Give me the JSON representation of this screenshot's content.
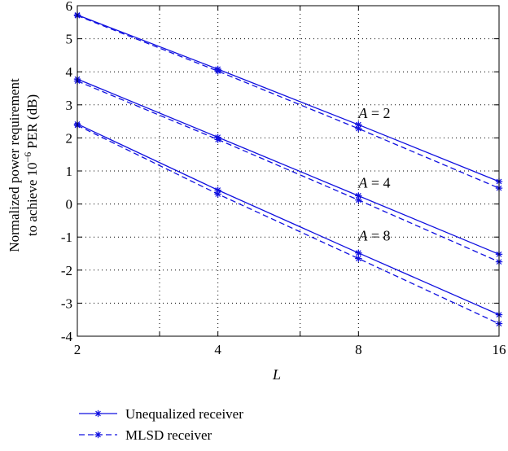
{
  "chart_data": {
    "type": "line",
    "xlabel": "L",
    "ylabel_line1": "Normalized power requirement",
    "ylabel_line2_prefix": "to achieve 10",
    "ylabel_line2_sup": "−6",
    "ylabel_line2_suffix": " PER (dB)",
    "x_scale": "log2",
    "x_ticks": [
      2,
      3,
      4,
      6,
      8,
      16
    ],
    "x_tick_labels": [
      "2",
      "4",
      "8",
      "16"
    ],
    "x_labeled_ticks": [
      2,
      4,
      8,
      16
    ],
    "xlim": [
      2,
      16
    ],
    "ylim": [
      -4,
      6
    ],
    "y_ticks": [
      -4,
      -3,
      -2,
      -1,
      0,
      1,
      2,
      3,
      4,
      5,
      6
    ],
    "grid": true,
    "x": [
      2,
      4,
      8,
      16
    ],
    "series": [
      {
        "group": "A = 2",
        "name": "Unequalized receiver",
        "style": "solid",
        "values": [
          5.72,
          4.08,
          2.4,
          0.68
        ]
      },
      {
        "group": "A = 2",
        "name": "MLSD receiver",
        "style": "dashed",
        "values": [
          5.7,
          4.02,
          2.28,
          0.48
        ]
      },
      {
        "group": "A = 4",
        "name": "Unequalized receiver",
        "style": "solid",
        "values": [
          3.78,
          2.02,
          0.25,
          -1.52
        ]
      },
      {
        "group": "A = 4",
        "name": "MLSD receiver",
        "style": "dashed",
        "values": [
          3.72,
          1.95,
          0.12,
          -1.75
        ]
      },
      {
        "group": "A = 8",
        "name": "Unequalized receiver",
        "style": "solid",
        "values": [
          2.42,
          0.42,
          -1.48,
          -3.35
        ]
      },
      {
        "group": "A = 8",
        "name": "MLSD receiver",
        "style": "dashed",
        "values": [
          2.38,
          0.3,
          -1.65,
          -3.62
        ]
      }
    ],
    "annotations": [
      {
        "var": "A",
        "text": " = 2",
        "x": 8,
        "y": 2.6
      },
      {
        "var": "A",
        "text": " = 4",
        "x": 8,
        "y": 0.5
      },
      {
        "var": "A",
        "text": " = 8",
        "x": 8,
        "y": -1.1
      }
    ],
    "legend": {
      "placement": "bottom-left",
      "entries": [
        {
          "label": "Unequalized receiver",
          "style": "solid"
        },
        {
          "label": "MLSD receiver",
          "style": "dashed"
        }
      ]
    },
    "line_color": "#1010e0"
  }
}
